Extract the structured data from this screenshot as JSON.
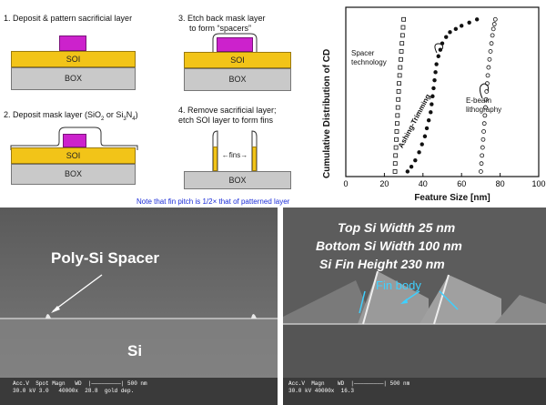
{
  "steps": {
    "s1": "1. Deposit & pattern sacrificial layer",
    "s2_pre": "2. Deposit mask layer (SiO",
    "s2_sub1": "2",
    "s2_mid": " or Si",
    "s2_sub2": "3",
    "s2_mid2": "N",
    "s2_sub3": "4",
    "s2_post": ")",
    "s3_line1": "3. Etch back mask layer",
    "s3_line2": "to form “spacers”",
    "s4_line1": "4. Remove sacrificial layer;",
    "s4_line2": "etch SOI layer to form fins"
  },
  "layers": {
    "soi": "SOI",
    "box": "BOX",
    "fins": "fins"
  },
  "note": "Note that fin pitch is 1/2× that of patterned layer",
  "chart_data": {
    "type": "scatter",
    "title": "",
    "xlabel": "Feature Size [nm]",
    "ylabel": "Cumulative Distribution of CD",
    "xlim": [
      0,
      100
    ],
    "xticks": [
      "0",
      "20",
      "40",
      "60",
      "80",
      "100"
    ],
    "annotations": [
      "Spacer technology",
      "Ashing-Trimming",
      "E-beam lithography"
    ],
    "series": [
      {
        "marker": "open-square",
        "x": [
          25.5,
          25.6,
          25.8,
          26,
          26.2,
          26.4,
          26.6,
          26.8,
          27,
          27.2,
          27.4,
          27.6,
          27.9,
          28.2,
          28.5,
          28.8,
          29.1,
          29.4,
          29.7,
          30
        ],
        "y": [
          0.02,
          0.07,
          0.12,
          0.17,
          0.22,
          0.27,
          0.32,
          0.37,
          0.42,
          0.47,
          0.52,
          0.57,
          0.62,
          0.67,
          0.72,
          0.77,
          0.82,
          0.87,
          0.92,
          0.97
        ]
      },
      {
        "marker": "filled-circle",
        "x": [
          32,
          34,
          36,
          38,
          39.5,
          41,
          42,
          43,
          44,
          44.5,
          45,
          45.5,
          46,
          46.5,
          47,
          48,
          49,
          50,
          52,
          54,
          57,
          60,
          64,
          68
        ],
        "y": [
          0.02,
          0.05,
          0.09,
          0.14,
          0.19,
          0.24,
          0.29,
          0.34,
          0.39,
          0.44,
          0.49,
          0.54,
          0.59,
          0.64,
          0.69,
          0.74,
          0.78,
          0.82,
          0.86,
          0.89,
          0.91,
          0.93,
          0.95,
          0.97
        ]
      },
      {
        "marker": "open-circle",
        "x": [
          70,
          70.3,
          70.6,
          70.9,
          71.2,
          71.5,
          71.8,
          72.1,
          72.4,
          72.7,
          73,
          73.3,
          73.6,
          74,
          74.5,
          75,
          75.5,
          76,
          76.5,
          77,
          77.5
        ],
        "y": [
          0.02,
          0.07,
          0.12,
          0.17,
          0.22,
          0.27,
          0.32,
          0.37,
          0.42,
          0.47,
          0.52,
          0.57,
          0.62,
          0.67,
          0.72,
          0.77,
          0.82,
          0.87,
          0.91,
          0.94,
          0.97
        ]
      }
    ]
  },
  "sem_left": {
    "label": "Poly-Si Spacer",
    "substrate": "Si",
    "scalebar": "Acc.V  Spot Magn   WD  |—————————| 500 nm",
    "scalebar2": "30.0 kV 3.0   40000x  28.8  gold dep."
  },
  "sem_right": {
    "line1": "Top Si Width 25 nm",
    "line2": "Bottom Si Width 100 nm",
    "line3": "Si Fin Height 230 nm",
    "fin_label": "Fin body",
    "scalebar": "Acc.V  Magn    WD  |—————————| 500 nm",
    "scalebar2": "30.0 kV 40000x  16.3"
  }
}
